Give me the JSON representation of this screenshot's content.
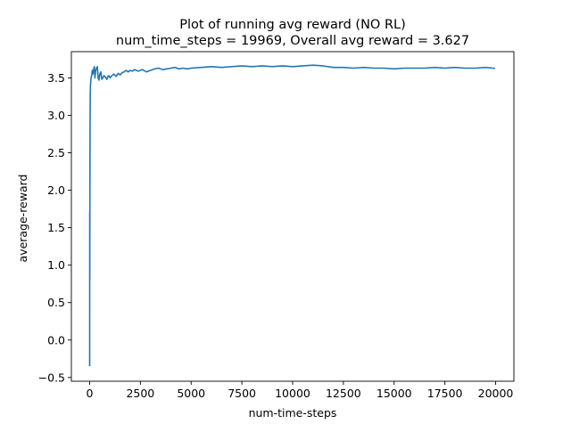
{
  "chart_data": {
    "type": "line",
    "title": [
      "Plot of running avg reward (NO RL)",
      "num_time_steps = 19969, Overall avg reward = 3.627"
    ],
    "xlabel": "num-time-steps",
    "ylabel": "average-reward",
    "xlim": [
      -900,
      20900
    ],
    "ylim": [
      -0.55,
      3.85
    ],
    "xticks": [
      0,
      2500,
      5000,
      7500,
      10000,
      12500,
      15000,
      17500,
      20000
    ],
    "yticks": [
      -0.5,
      0.0,
      0.5,
      1.0,
      1.5,
      2.0,
      2.5,
      3.0,
      3.5
    ],
    "ytick_labels": [
      "−0.5",
      "0.0",
      "0.5",
      "1.0",
      "1.5",
      "2.0",
      "2.5",
      "3.0",
      "3.5"
    ],
    "grid": false,
    "legend": "none",
    "series": [
      {
        "color": "#1f77b4",
        "x": [
          1,
          4,
          7,
          10,
          15,
          20,
          30,
          40,
          55,
          70,
          90,
          110,
          130,
          160,
          200,
          230,
          260,
          300,
          340,
          380,
          420,
          460,
          500,
          550,
          600,
          650,
          700,
          750,
          800,
          850,
          900,
          950,
          1000,
          1100,
          1200,
          1300,
          1400,
          1500,
          1600,
          1700,
          1800,
          1900,
          2000,
          2100,
          2200,
          2300,
          2400,
          2500,
          2600,
          2800,
          3000,
          3200,
          3400,
          3600,
          3800,
          4000,
          4200,
          4400,
          4600,
          4800,
          5000,
          5500,
          6000,
          6500,
          7000,
          7500,
          8000,
          8500,
          9000,
          9500,
          10000,
          10500,
          11000,
          11500,
          12000,
          12500,
          13000,
          13500,
          14000,
          14500,
          15000,
          15500,
          16000,
          16500,
          17000,
          17500,
          18000,
          18500,
          19000,
          19500,
          19969
        ],
        "y": [
          -0.35,
          1.7,
          0.8,
          1.6,
          2.3,
          2.9,
          3.25,
          3.4,
          3.45,
          3.5,
          3.52,
          3.55,
          3.6,
          3.55,
          3.62,
          3.65,
          3.5,
          3.6,
          3.63,
          3.65,
          3.5,
          3.47,
          3.55,
          3.58,
          3.48,
          3.5,
          3.53,
          3.52,
          3.5,
          3.48,
          3.52,
          3.53,
          3.5,
          3.53,
          3.55,
          3.52,
          3.56,
          3.54,
          3.57,
          3.58,
          3.6,
          3.58,
          3.6,
          3.59,
          3.61,
          3.6,
          3.59,
          3.6,
          3.61,
          3.58,
          3.6,
          3.62,
          3.63,
          3.61,
          3.62,
          3.63,
          3.64,
          3.62,
          3.63,
          3.62,
          3.63,
          3.64,
          3.65,
          3.64,
          3.65,
          3.66,
          3.65,
          3.66,
          3.65,
          3.66,
          3.65,
          3.66,
          3.67,
          3.66,
          3.64,
          3.64,
          3.63,
          3.64,
          3.63,
          3.63,
          3.62,
          3.63,
          3.63,
          3.63,
          3.64,
          3.63,
          3.64,
          3.63,
          3.63,
          3.64,
          3.627
        ]
      }
    ]
  }
}
